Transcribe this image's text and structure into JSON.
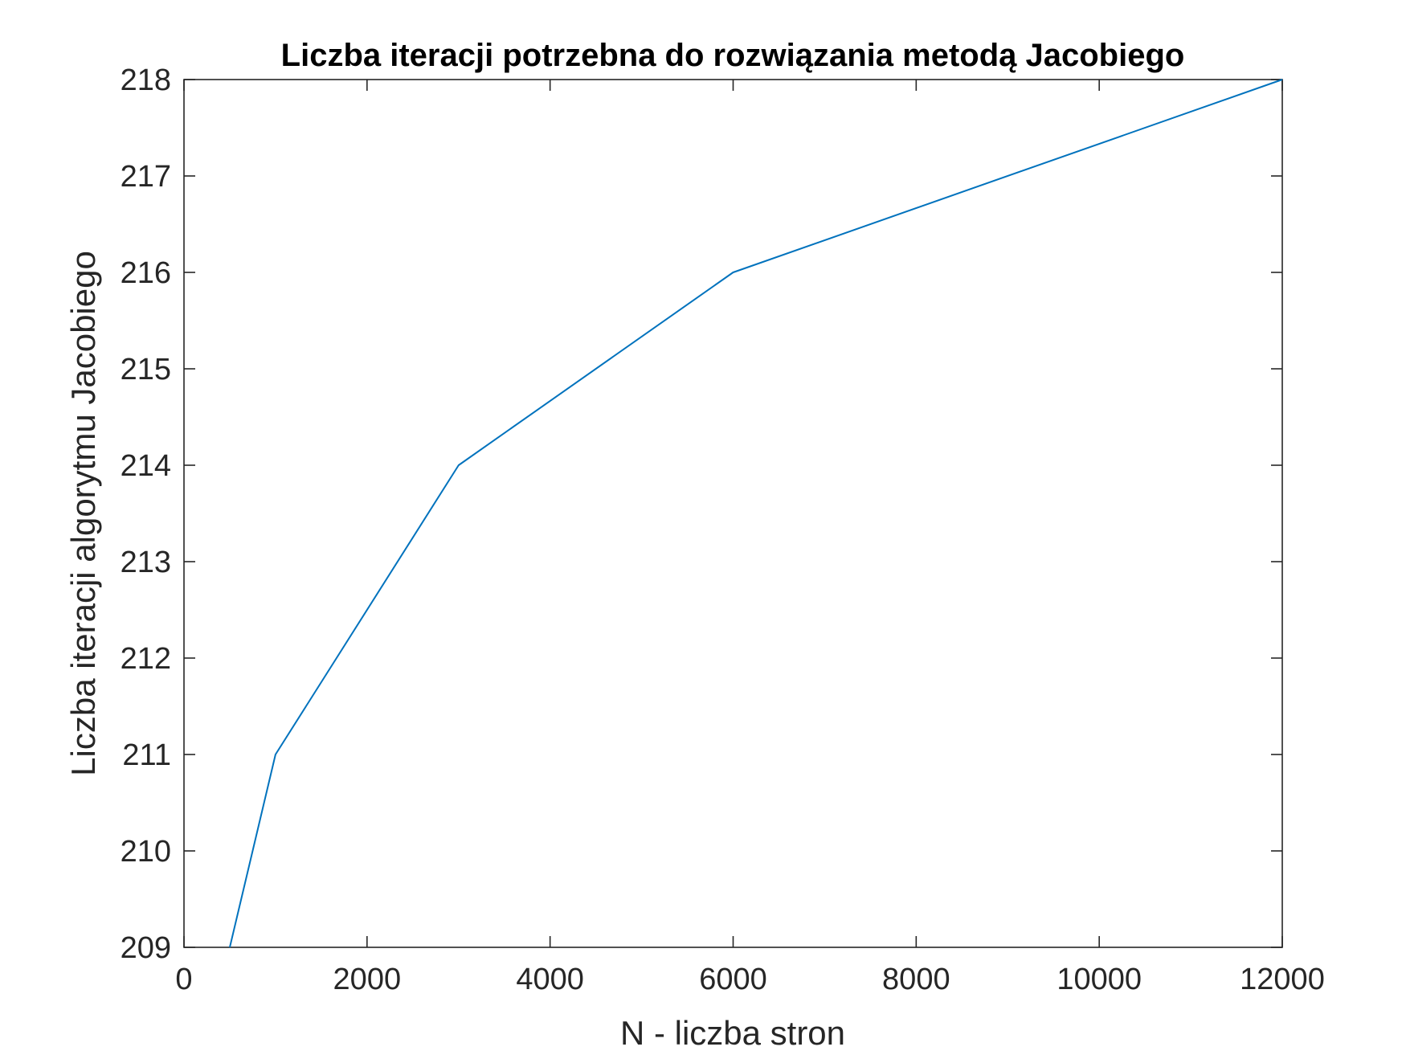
{
  "chart_data": {
    "type": "line",
    "title": "Liczba iteracji potrzebna do rozwiązania metodą Jacobiego",
    "xlabel": "N - liczba stron",
    "ylabel": "Liczba iteracji algorytmu Jacobiego",
    "xlim": [
      0,
      12000
    ],
    "ylim": [
      209,
      218
    ],
    "xticks": [
      0,
      2000,
      4000,
      6000,
      8000,
      10000,
      12000
    ],
    "yticks": [
      209,
      210,
      211,
      212,
      213,
      214,
      215,
      216,
      217,
      218
    ],
    "grid": false,
    "series": [
      {
        "color": "#0072BD",
        "x": [
          500,
          1000,
          3000,
          6000,
          12000
        ],
        "y": [
          209,
          211,
          214,
          216,
          218
        ]
      }
    ]
  }
}
